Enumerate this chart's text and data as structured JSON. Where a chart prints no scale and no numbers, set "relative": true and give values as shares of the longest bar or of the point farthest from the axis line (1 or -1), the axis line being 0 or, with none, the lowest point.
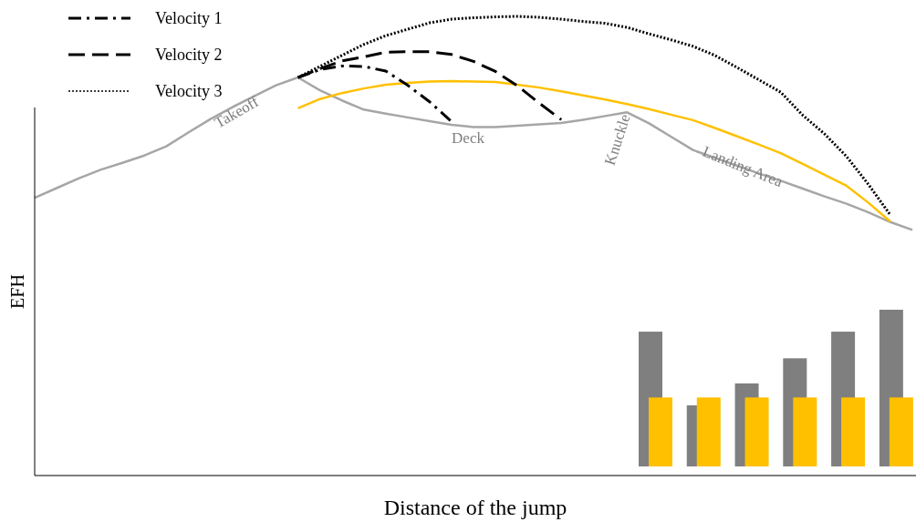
{
  "chart_data": [
    {
      "type": "line",
      "relative": true,
      "xlabel": "Distance of the jump",
      "ylabel": "EFH",
      "legend": "top left",
      "categories": [
        null,
        null,
        null,
        null,
        null,
        null,
        null,
        null,
        null,
        null,
        null,
        null,
        null,
        null,
        null,
        null,
        null,
        null,
        null,
        null,
        null,
        null,
        null,
        null,
        null,
        null,
        null,
        null,
        null,
        null,
        null,
        null,
        null,
        null,
        null,
        null,
        null,
        null,
        null,
        null,
        null
      ],
      "series": [
        {
          "color": "#a6a6a6",
          "line_style": "solid",
          "values": [
            0.605,
            0.626,
            0.647,
            0.666,
            0.681,
            0.697,
            0.717,
            0.747,
            0.776,
            0.802,
            0.826,
            0.85,
            0.867,
            0.839,
            0.817,
            0.797,
            0.788,
            0.78,
            0.772,
            0.764,
            0.759,
            0.759,
            0.762,
            0.765,
            0.768,
            0.775,
            0.783,
            0.791,
            0.767,
            0.738,
            0.709,
            0.692,
            0.675,
            0.658,
            0.642,
            0.625,
            0.608,
            0.592,
            0.573,
            0.552,
            0.535
          ]
        },
        {
          "color": "#ffc000",
          "line_style": "solid",
          "values": [
            null,
            null,
            null,
            null,
            null,
            null,
            null,
            null,
            null,
            null,
            null,
            null,
            0.8,
            0.82,
            0.833,
            0.843,
            0.851,
            0.855,
            0.858,
            0.859,
            0.858,
            0.857,
            0.851,
            0.845,
            0.837,
            0.828,
            0.819,
            0.809,
            0.798,
            0.786,
            0.774,
            0.757,
            0.739,
            0.721,
            0.702,
            0.679,
            0.655,
            0.631,
            0.594,
            0.553,
            null
          ]
        },
        {
          "name": "Velocity 1",
          "color": "#000000",
          "line_style": "dashdot",
          "values": [
            null,
            null,
            null,
            null,
            null,
            null,
            null,
            null,
            null,
            null,
            null,
            null,
            0.867,
            0.884,
            0.892,
            0.891,
            0.881,
            0.85,
            0.814,
            0.771,
            null,
            null,
            null,
            null,
            null,
            null,
            null,
            null,
            null,
            null,
            null,
            null,
            null,
            null,
            null,
            null,
            null,
            null,
            null,
            null,
            null
          ]
        },
        {
          "name": "Velocity 2",
          "color": "#000000",
          "line_style": "dashed",
          "values": [
            null,
            null,
            null,
            null,
            null,
            null,
            null,
            null,
            null,
            null,
            null,
            null,
            0.867,
            0.886,
            0.903,
            0.912,
            0.922,
            0.923,
            0.923,
            0.917,
            0.902,
            0.88,
            0.849,
            0.811,
            0.775,
            null,
            null,
            null,
            null,
            null,
            null,
            null,
            null,
            null,
            null,
            null,
            null,
            null,
            null,
            null,
            null
          ]
        },
        {
          "name": "Velocity 3",
          "color": "#000000",
          "line_style": "dotted",
          "values": [
            null,
            null,
            null,
            null,
            null,
            null,
            null,
            null,
            null,
            null,
            null,
            null,
            0.867,
            0.891,
            0.915,
            0.939,
            0.958,
            0.972,
            0.986,
            0.994,
            0.997,
            0.999,
            1.0,
            0.998,
            0.994,
            0.989,
            0.985,
            0.976,
            0.962,
            0.949,
            0.935,
            0.915,
            0.889,
            0.862,
            0.835,
            0.785,
            0.744,
            0.695,
            0.634,
            0.567,
            null
          ]
        }
      ],
      "annotations": [
        "Takeoff",
        "Deck",
        "Knuckle",
        "Landing Area"
      ]
    },
    {
      "type": "bar",
      "relative": true,
      "categories": [
        null,
        null,
        null,
        null,
        null,
        null
      ],
      "series": [
        {
          "color": "#7f7f7f",
          "values": [
            0.86,
            0.39,
            0.53,
            0.69,
            0.86,
            1
          ]
        },
        {
          "color": "#ffc000",
          "values": [
            0.44,
            0.44,
            0.44,
            0.44,
            0.44,
            0.44
          ]
        }
      ]
    }
  ]
}
